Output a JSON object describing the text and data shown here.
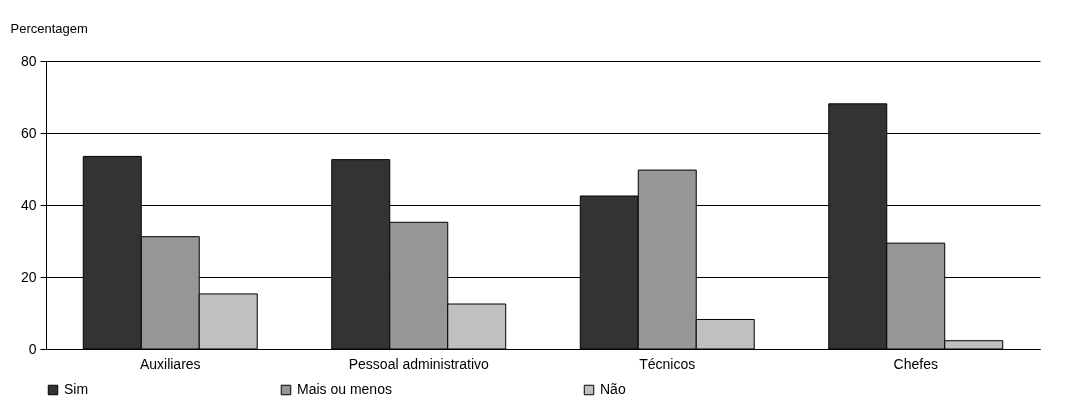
{
  "chart_data": {
    "type": "bar",
    "ylabel": "Percentagem",
    "categories": [
      "Auxiliares",
      "Pessoal administrativo",
      "Técnicos",
      "Chefes"
    ],
    "series": [
      {
        "name": "Sim",
        "color": "#333333",
        "values": [
          53.5,
          52.6,
          42.5,
          68.1
        ]
      },
      {
        "name": "Mais ou menos",
        "color": "#969696",
        "values": [
          31.2,
          35.2,
          49.7,
          29.4
        ]
      },
      {
        "name": "Não",
        "color": "#c0c0c0",
        "values": [
          15.3,
          12.5,
          8.2,
          2.3
        ]
      }
    ],
    "ylim": [
      0,
      80
    ],
    "yticks": [
      0,
      20,
      40,
      60,
      80
    ],
    "grid": "y",
    "legend": "bottom"
  }
}
